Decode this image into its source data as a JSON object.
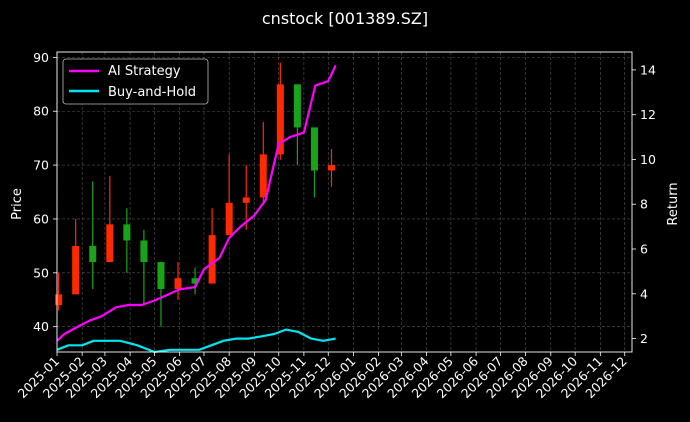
{
  "chart_data": {
    "type": "line",
    "title": "cnstock [001389.SZ]",
    "ylabel_left": "Price",
    "ylabel_right": "Return",
    "xlabel": "",
    "grid": true,
    "legend_placement": "top-left",
    "x_tick_labels": [
      "2025-01",
      "2025-02",
      "2025-03",
      "2025-04",
      "2025-05",
      "2025-06",
      "2025-07",
      "2025-08",
      "2025-09",
      "2025-10",
      "2025-11",
      "2025-12",
      "2026-01",
      "2026-02",
      "2026-03",
      "2026-04",
      "2026-05",
      "2026-06",
      "2026-07",
      "2026-08",
      "2026-09",
      "2026-10",
      "2026-11",
      "2026-12"
    ],
    "x_range": [
      "2025-01-01",
      "2026-12-10"
    ],
    "y_left_ticks": [
      40,
      50,
      60,
      70,
      80,
      90
    ],
    "y_left_range": [
      35.3,
      91
    ],
    "y_right_ticks": [
      2,
      4,
      6,
      8,
      10,
      12,
      14
    ],
    "y_right_range": [
      1.4,
      14.8
    ],
    "colors": {
      "background": "#000000",
      "up_candle": "#ff2a00",
      "down_candle": "#19a319",
      "ai_strategy": "#ff00ff",
      "buy_and_hold": "#00e5ee",
      "grid": "#555555"
    },
    "price_ohlc_monthly": {
      "dates": [
        "2025-01-03",
        "2025-01-24",
        "2025-02-14",
        "2025-03-07",
        "2025-03-28",
        "2025-04-18",
        "2025-05-09",
        "2025-05-30",
        "2025-06-20",
        "2025-07-11",
        "2025-08-01",
        "2025-08-22",
        "2025-09-12",
        "2025-10-03",
        "2025-10-24",
        "2025-11-14",
        "2025-12-05"
      ],
      "close": [
        46,
        55,
        52,
        59,
        56,
        52,
        47,
        49,
        48,
        57,
        63,
        64,
        72,
        85,
        77,
        69,
        70
      ],
      "high": [
        50,
        60,
        67,
        68,
        62,
        58,
        49,
        52,
        51,
        62,
        72,
        70,
        78,
        89,
        81,
        73,
        73
      ],
      "low": [
        43,
        49,
        47,
        52,
        50,
        44,
        40,
        45,
        46,
        49,
        57,
        58,
        63,
        71,
        70,
        64,
        66
      ]
    },
    "series": [
      {
        "name": "AI Strategy",
        "axis": "right",
        "x": [
          "2025-01-01",
          "2025-01-10",
          "2025-01-25",
          "2025-02-10",
          "2025-02-25",
          "2025-03-15",
          "2025-03-30",
          "2025-04-15",
          "2025-05-01",
          "2025-05-20",
          "2025-06-01",
          "2025-06-20",
          "2025-07-01",
          "2025-07-20",
          "2025-08-01",
          "2025-08-15",
          "2025-09-01",
          "2025-09-15",
          "2025-10-01",
          "2025-10-15",
          "2025-11-01",
          "2025-11-15",
          "2025-12-01",
          "2025-12-10"
        ],
        "values": [
          1.9,
          2.2,
          2.5,
          2.8,
          3.0,
          3.4,
          3.5,
          3.5,
          3.7,
          4.0,
          4.2,
          4.3,
          5.1,
          5.6,
          6.5,
          7.0,
          7.5,
          8.2,
          10.7,
          11.0,
          11.2,
          13.3,
          13.5,
          14.2
        ]
      },
      {
        "name": "Buy-and-Hold",
        "axis": "right",
        "x": [
          "2025-01-01",
          "2025-01-15",
          "2025-02-01",
          "2025-02-15",
          "2025-03-01",
          "2025-03-20",
          "2025-04-10",
          "2025-05-01",
          "2025-05-20",
          "2025-06-10",
          "2025-06-25",
          "2025-07-10",
          "2025-07-25",
          "2025-08-10",
          "2025-08-25",
          "2025-09-10",
          "2025-09-25",
          "2025-10-10",
          "2025-10-25",
          "2025-11-10",
          "2025-11-25",
          "2025-12-10"
        ],
        "values": [
          1.5,
          1.7,
          1.7,
          1.9,
          1.9,
          1.9,
          1.7,
          1.4,
          1.5,
          1.5,
          1.5,
          1.7,
          1.9,
          2.0,
          2.0,
          2.1,
          2.2,
          2.4,
          2.3,
          2.0,
          1.9,
          2.0
        ]
      }
    ]
  }
}
